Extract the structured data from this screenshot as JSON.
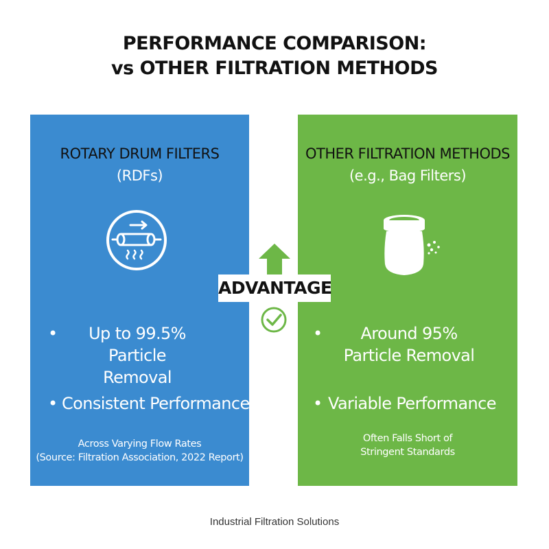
{
  "title": {
    "line1": "PERFORMANCE COMPARISON:",
    "line2": "vs OTHER FILTRATION METHODS"
  },
  "left_panel": {
    "title": "ROTARY DRUM FILTERS",
    "subtitle": "(RDFs)",
    "icon": "rotary-drum-icon",
    "bullet1_line1": "Up to 99.5%",
    "bullet1_line2": "Particle Removal",
    "bullet2": "Consistent Performance",
    "note_line1": "Across Varying Flow Rates",
    "note_line2": "(Source: Filtration Association, 2022 Report)",
    "color": "#3b8bd0"
  },
  "right_panel": {
    "title": "OTHER FILTRATION METHODS",
    "subtitle": "(e.g., Bag Filters)",
    "icon": "bag-filter-icon",
    "bullet1_line1": "Around 95%",
    "bullet1_line2": "Particle Removal",
    "bullet2": "Variable Performance",
    "note_line1": "Often Falls Short of",
    "note_line2": "Stringent Standards",
    "color": "#6db747"
  },
  "center": {
    "label": "ADVANTAGE",
    "arrow_icon": "up-arrow-icon",
    "check_icon": "check-circle-icon",
    "accent": "#6db747"
  },
  "bullet_char": "•",
  "footer": "Industrial Filtration Solutions"
}
